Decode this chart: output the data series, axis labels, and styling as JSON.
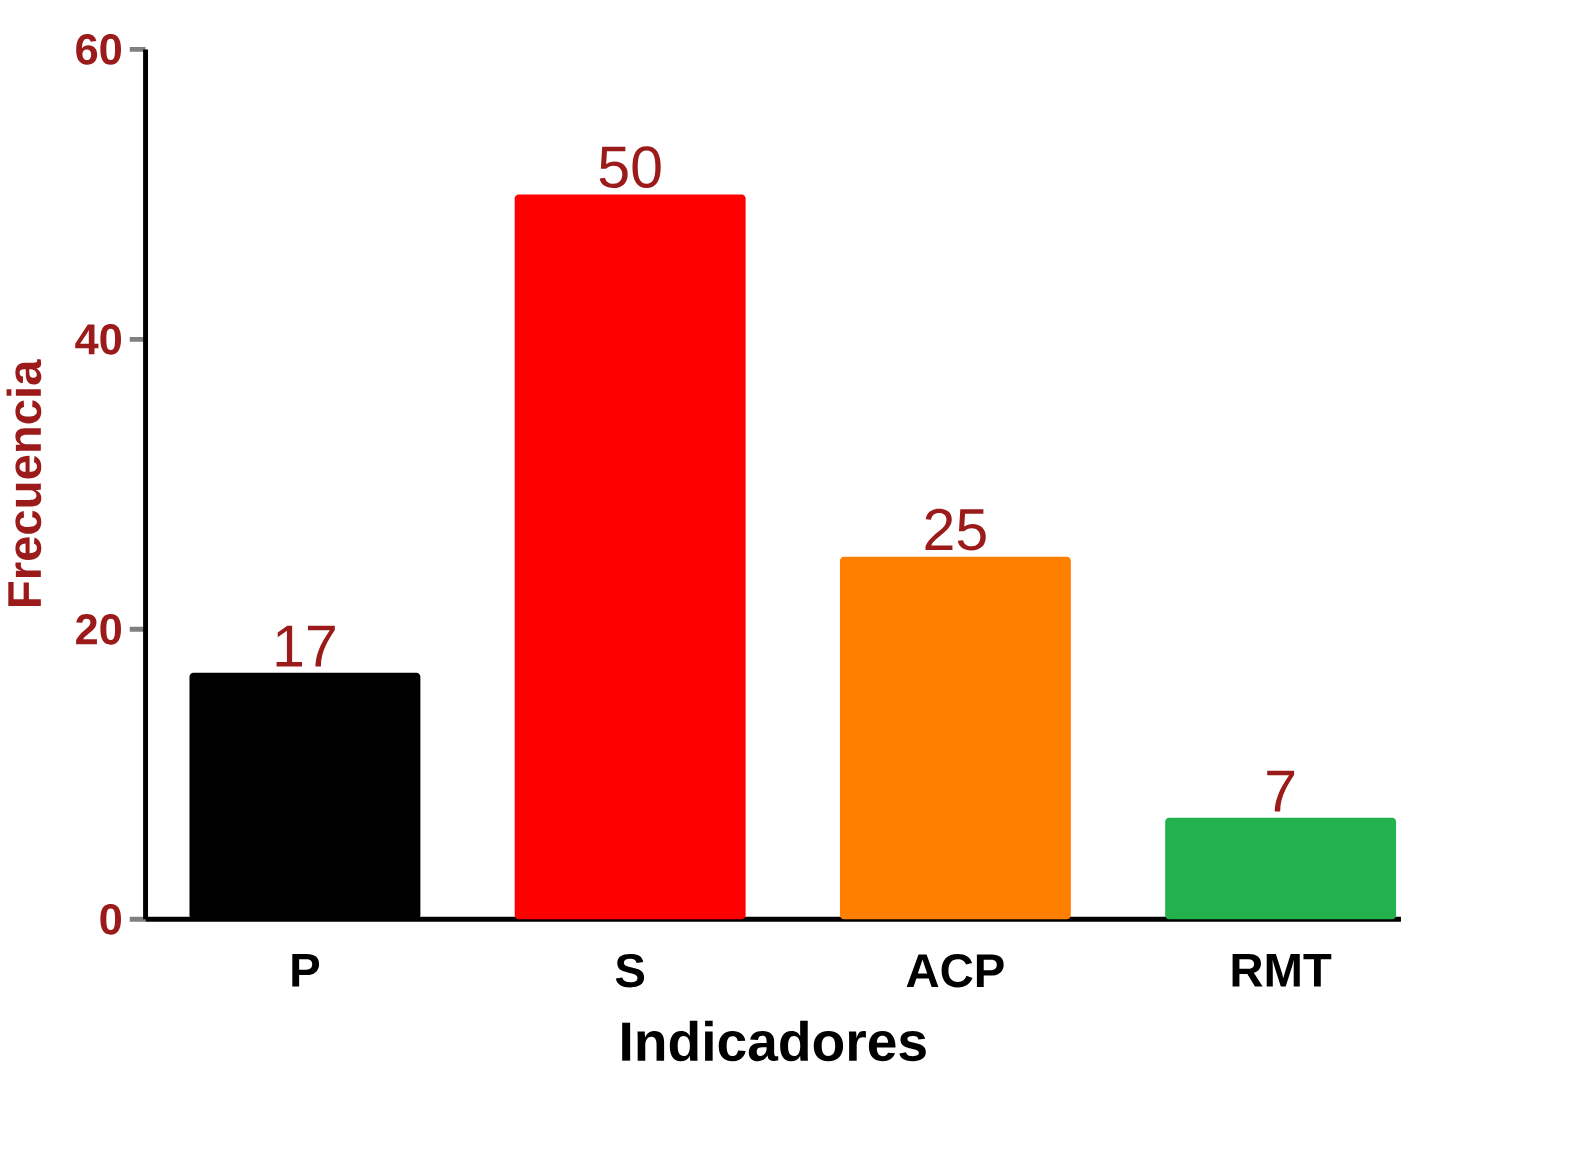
{
  "chart_data": {
    "type": "bar",
    "xlabel": "Indicadores",
    "ylabel": "Frecuencia",
    "categories": [
      "P",
      "S",
      "ACP",
      "RMT"
    ],
    "values": [
      17,
      50,
      25,
      7
    ],
    "colors": [
      "#000000",
      "#ff0000",
      "#ff8000",
      "#22b14c"
    ],
    "ylim": [
      0,
      60
    ],
    "yticks": [
      0,
      20,
      40,
      60
    ],
    "data_labels": true,
    "grid": false
  }
}
